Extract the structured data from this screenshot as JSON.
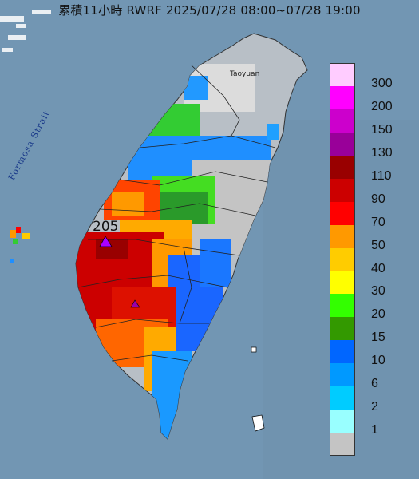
{
  "title": "累積11小時 RWRF 2025/07/28 08:00~07/28 19:00",
  "map": {
    "strait_label": "Formosa Strait",
    "city_label": "Taoyuan",
    "peak_value": "205"
  },
  "legend": [
    {
      "label": "300",
      "color": "#ffccff"
    },
    {
      "label": "200",
      "color": "#ff00ff"
    },
    {
      "label": "150",
      "color": "#cc00cc"
    },
    {
      "label": "130",
      "color": "#990099"
    },
    {
      "label": "110",
      "color": "#990000"
    },
    {
      "label": "90",
      "color": "#cc0000"
    },
    {
      "label": "70",
      "color": "#ff0000"
    },
    {
      "label": "50",
      "color": "#ff9900"
    },
    {
      "label": "40",
      "color": "#ffcc00"
    },
    {
      "label": "30",
      "color": "#ffff00"
    },
    {
      "label": "20",
      "color": "#33ff00"
    },
    {
      "label": "15",
      "color": "#339900"
    },
    {
      "label": "10",
      "color": "#0066ff"
    },
    {
      "label": "6",
      "color": "#0099ff"
    },
    {
      "label": "2",
      "color": "#00ccff"
    },
    {
      "label": "1",
      "color": "#99ffff"
    },
    {
      "label": "",
      "color": "#c4c4c4"
    }
  ]
}
